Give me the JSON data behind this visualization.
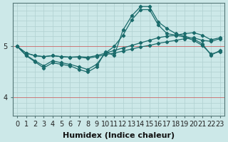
{
  "title": "",
  "xlabel": "Humidex (Indice chaleur)",
  "ylabel": "",
  "bg_color": "#cce8e8",
  "line_color": "#1a6b6b",
  "x_ticks": [
    0,
    1,
    2,
    3,
    4,
    5,
    6,
    7,
    8,
    9,
    10,
    11,
    12,
    13,
    14,
    15,
    16,
    17,
    18,
    19,
    20,
    21,
    22,
    23
  ],
  "y_ticks": [
    4,
    5
  ],
  "ylim": [
    3.65,
    5.85
  ],
  "xlim": [
    -0.5,
    23.5
  ],
  "series": [
    {
      "x": [
        0,
        1,
        2,
        3,
        4,
        5,
        6,
        7,
        8,
        9,
        10,
        11,
        12,
        13,
        14,
        15,
        16,
        17,
        18,
        19,
        20,
        21,
        22,
        23
      ],
      "y": [
        5.0,
        4.87,
        4.82,
        4.8,
        4.82,
        4.8,
        4.79,
        4.8,
        4.79,
        4.82,
        4.87,
        4.92,
        4.97,
        5.02,
        5.07,
        5.12,
        5.17,
        5.2,
        5.22,
        5.25,
        5.27,
        5.22,
        5.13,
        5.17
      ]
    },
    {
      "x": [
        0,
        1,
        2,
        3,
        4,
        5,
        6,
        7,
        8,
        9,
        10,
        11,
        12,
        13,
        14,
        15,
        16,
        17,
        18,
        19,
        20,
        21,
        22,
        23
      ],
      "y": [
        5.0,
        4.87,
        4.82,
        4.8,
        4.82,
        4.8,
        4.79,
        4.79,
        4.77,
        4.8,
        4.84,
        4.87,
        4.91,
        4.95,
        4.99,
        5.02,
        5.06,
        5.09,
        5.12,
        5.15,
        5.17,
        5.12,
        5.1,
        5.15
      ]
    },
    {
      "x": [
        0,
        1,
        2,
        3,
        4,
        5,
        6,
        7,
        8,
        9,
        10,
        11,
        12,
        13,
        14,
        15,
        16,
        17,
        18,
        19,
        20,
        21,
        22,
        23
      ],
      "y": [
        5.0,
        4.83,
        4.72,
        4.62,
        4.72,
        4.68,
        4.65,
        4.6,
        4.55,
        4.65,
        4.87,
        5.0,
        5.22,
        5.52,
        5.72,
        5.72,
        5.42,
        5.25,
        5.22,
        5.18,
        5.12,
        5.02,
        4.85,
        4.9
      ]
    },
    {
      "x": [
        0,
        1,
        2,
        3,
        4,
        5,
        6,
        7,
        8,
        9,
        10,
        11,
        12,
        13,
        14,
        15,
        16,
        17,
        18,
        19,
        20,
        21,
        22,
        23
      ],
      "y": [
        5.0,
        4.82,
        4.7,
        4.58,
        4.68,
        4.65,
        4.62,
        4.55,
        4.5,
        4.6,
        4.9,
        4.82,
        5.32,
        5.6,
        5.78,
        5.78,
        5.48,
        5.35,
        5.25,
        5.2,
        5.15,
        5.05,
        4.83,
        4.92
      ]
    }
  ],
  "grid_color": "#b0d0d0",
  "red_line_color": "#cc6666",
  "tick_fontsize": 7,
  "xlabel_fontsize": 8
}
